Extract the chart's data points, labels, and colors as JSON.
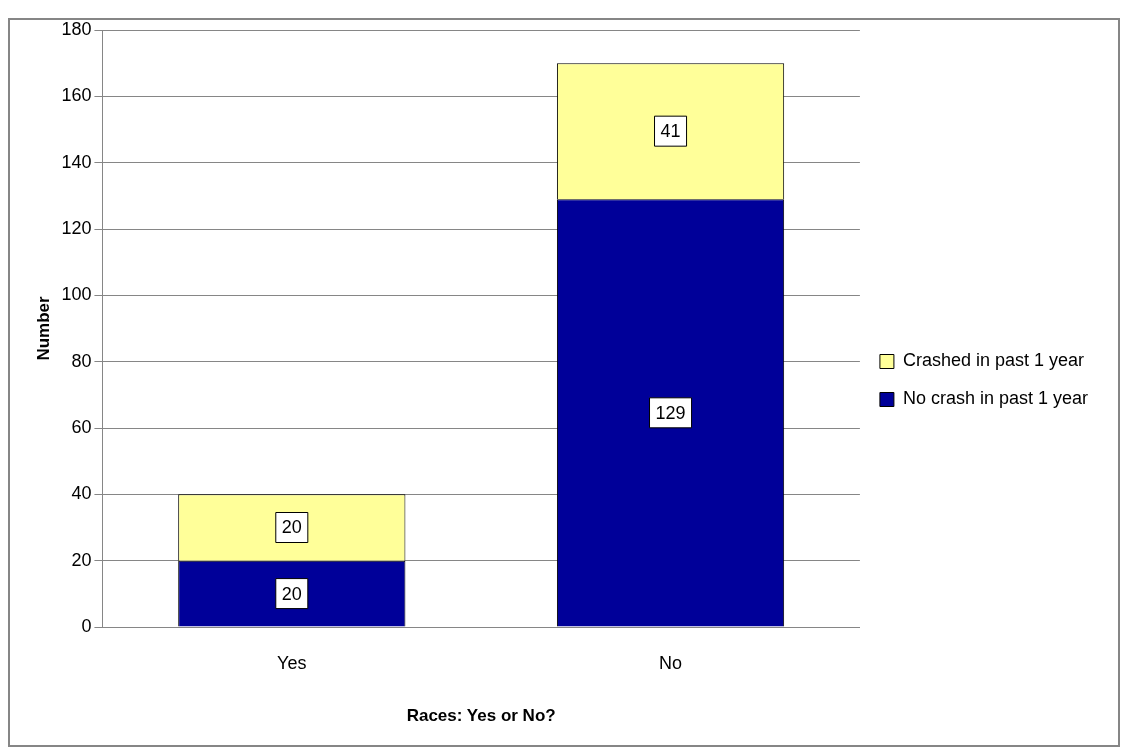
{
  "chart_data": {
    "type": "bar",
    "stacked": true,
    "xlabel": "Races: Yes or No?",
    "ylabel": "Number",
    "categories": [
      "Yes",
      "No"
    ],
    "series": [
      {
        "name": "No crash in past 1 year",
        "color": "#000099",
        "values": [
          20,
          129
        ]
      },
      {
        "name": "Crashed in past 1 year",
        "color": "#ffff99",
        "values": [
          20,
          41
        ]
      }
    ],
    "ylim": [
      0,
      180
    ],
    "yticks": [
      0,
      20,
      40,
      60,
      80,
      100,
      120,
      140,
      160,
      180
    ],
    "grid": "y",
    "legend": "right",
    "data_labels": true
  }
}
